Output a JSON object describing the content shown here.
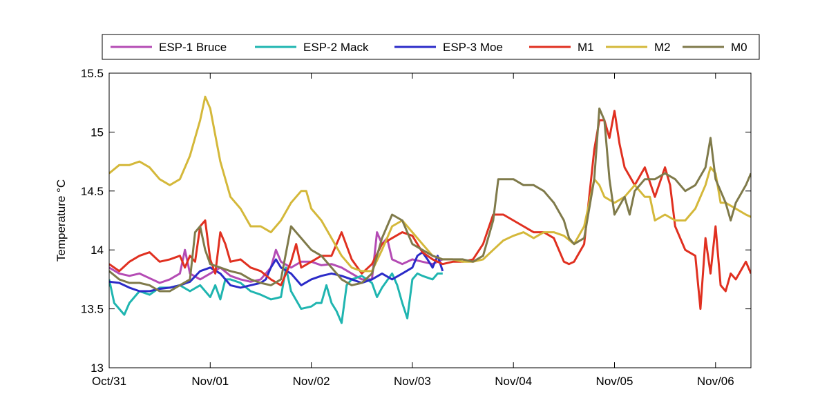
{
  "chart_data": {
    "type": "line",
    "title": "",
    "xlabel": "",
    "ylabel": "Temperature °C",
    "xlim": [
      0,
      6.35
    ],
    "ylim": [
      13,
      15.5
    ],
    "x_ticks": [
      {
        "value": 0,
        "label": "Oct/31"
      },
      {
        "value": 1,
        "label": "Nov/01"
      },
      {
        "value": 2,
        "label": "Nov/02"
      },
      {
        "value": 3,
        "label": "Nov/03"
      },
      {
        "value": 4,
        "label": "Nov/04"
      },
      {
        "value": 5,
        "label": "Nov/05"
      },
      {
        "value": 6,
        "label": "Nov/06"
      }
    ],
    "y_ticks": [
      {
        "value": 13,
        "label": "13"
      },
      {
        "value": 13.5,
        "label": "13.5"
      },
      {
        "value": 14,
        "label": "14"
      },
      {
        "value": 14.5,
        "label": "14.5"
      },
      {
        "value": 15,
        "label": "15"
      },
      {
        "value": 15.5,
        "label": "15.5"
      }
    ],
    "grid": false,
    "legend_position": "top",
    "x_unit_note": "days",
    "series": [
      {
        "name": "ESP-1 Bruce",
        "color": "#b44bb4",
        "x": [
          0,
          0.1,
          0.2,
          0.3,
          0.4,
          0.5,
          0.6,
          0.7,
          0.75,
          0.8,
          0.9,
          1.0,
          1.1,
          1.2,
          1.3,
          1.4,
          1.5,
          1.6,
          1.65,
          1.7,
          1.8,
          1.9,
          2.0,
          2.1,
          2.2,
          2.3,
          2.4,
          2.5,
          2.6,
          2.65,
          2.7,
          2.75,
          2.8,
          2.9,
          3.0,
          3.1,
          3.2,
          3.25,
          3.3
        ],
        "y": [
          13.85,
          13.8,
          13.78,
          13.8,
          13.76,
          13.72,
          13.75,
          13.8,
          14.0,
          13.8,
          13.75,
          13.8,
          13.85,
          13.78,
          13.75,
          13.73,
          13.75,
          13.85,
          14.0,
          13.9,
          13.85,
          13.9,
          13.9,
          13.87,
          13.88,
          13.85,
          13.8,
          13.75,
          13.75,
          14.15,
          14.05,
          14.1,
          13.92,
          13.88,
          13.92,
          13.9,
          13.88,
          13.9,
          13.92
        ]
      },
      {
        "name": "ESP-2 Mack",
        "color": "#1fb5b0",
        "x": [
          0,
          0.05,
          0.1,
          0.15,
          0.2,
          0.3,
          0.4,
          0.5,
          0.6,
          0.7,
          0.8,
          0.9,
          1.0,
          1.05,
          1.1,
          1.15,
          1.2,
          1.3,
          1.4,
          1.5,
          1.6,
          1.7,
          1.75,
          1.8,
          1.9,
          2.0,
          2.05,
          2.1,
          2.15,
          2.2,
          2.25,
          2.3,
          2.35,
          2.4,
          2.5,
          2.6,
          2.65,
          2.7,
          2.8,
          2.85,
          2.9,
          2.95,
          3.0,
          3.05,
          3.1,
          3.2,
          3.25,
          3.3
        ],
        "y": [
          13.75,
          13.55,
          13.5,
          13.45,
          13.55,
          13.65,
          13.62,
          13.68,
          13.68,
          13.7,
          13.65,
          13.7,
          13.6,
          13.7,
          13.58,
          13.75,
          13.75,
          13.72,
          13.65,
          13.62,
          13.58,
          13.6,
          13.85,
          13.65,
          13.5,
          13.52,
          13.55,
          13.55,
          13.7,
          13.55,
          13.48,
          13.38,
          13.7,
          13.75,
          13.78,
          13.72,
          13.6,
          13.68,
          13.8,
          13.7,
          13.55,
          13.42,
          13.75,
          13.8,
          13.78,
          13.75,
          13.8,
          13.8
        ]
      },
      {
        "name": "ESP-3 Moe",
        "color": "#2b2bc8",
        "x": [
          0,
          0.1,
          0.2,
          0.3,
          0.4,
          0.5,
          0.6,
          0.7,
          0.8,
          0.9,
          1.0,
          1.1,
          1.2,
          1.3,
          1.4,
          1.5,
          1.55,
          1.6,
          1.65,
          1.7,
          1.8,
          1.9,
          2.0,
          2.1,
          2.2,
          2.3,
          2.4,
          2.5,
          2.6,
          2.7,
          2.8,
          2.9,
          3.0,
          3.05,
          3.1,
          3.15,
          3.2,
          3.25,
          3.3
        ],
        "y": [
          13.73,
          13.72,
          13.68,
          13.65,
          13.65,
          13.67,
          13.68,
          13.7,
          13.73,
          13.82,
          13.85,
          13.8,
          13.7,
          13.68,
          13.7,
          13.72,
          13.75,
          13.85,
          13.92,
          13.85,
          13.8,
          13.7,
          13.75,
          13.78,
          13.8,
          13.78,
          13.75,
          13.72,
          13.75,
          13.8,
          13.75,
          13.8,
          13.85,
          13.95,
          13.98,
          13.92,
          13.85,
          13.95,
          13.82
        ]
      },
      {
        "name": "M1",
        "color": "#e03020",
        "x": [
          0,
          0.1,
          0.2,
          0.3,
          0.4,
          0.5,
          0.6,
          0.7,
          0.75,
          0.8,
          0.85,
          0.9,
          0.95,
          1.0,
          1.05,
          1.1,
          1.15,
          1.2,
          1.3,
          1.4,
          1.5,
          1.6,
          1.7,
          1.8,
          1.85,
          1.9,
          2.0,
          2.1,
          2.2,
          2.3,
          2.4,
          2.5,
          2.6,
          2.7,
          2.8,
          2.9,
          3.0,
          3.1,
          3.2,
          3.3,
          3.4,
          3.5,
          3.6,
          3.7,
          3.8,
          3.9,
          4.0,
          4.1,
          4.2,
          4.3,
          4.4,
          4.5,
          4.55,
          4.6,
          4.7,
          4.8,
          4.85,
          4.9,
          4.95,
          5.0,
          5.05,
          5.1,
          5.2,
          5.3,
          5.4,
          5.5,
          5.55,
          5.6,
          5.7,
          5.8,
          5.85,
          5.9,
          5.95,
          6.0,
          6.05,
          6.1,
          6.15,
          6.2,
          6.3,
          6.35
        ],
        "y": [
          13.88,
          13.82,
          13.9,
          13.95,
          13.98,
          13.9,
          13.92,
          13.95,
          13.85,
          13.95,
          13.9,
          14.2,
          14.25,
          13.92,
          13.8,
          14.15,
          14.05,
          13.9,
          13.92,
          13.85,
          13.82,
          13.75,
          13.7,
          13.9,
          14.05,
          13.85,
          13.9,
          13.95,
          13.95,
          14.15,
          13.92,
          13.8,
          13.88,
          14.05,
          14.1,
          14.15,
          14.12,
          13.98,
          13.92,
          13.88,
          13.9,
          13.9,
          13.92,
          14.05,
          14.3,
          14.3,
          14.25,
          14.2,
          14.15,
          14.15,
          14.1,
          13.9,
          13.88,
          13.9,
          14.05,
          14.85,
          15.1,
          15.1,
          14.95,
          15.18,
          14.9,
          14.7,
          14.55,
          14.7,
          14.45,
          14.7,
          14.55,
          14.2,
          14.0,
          13.95,
          13.5,
          14.1,
          13.8,
          14.2,
          13.7,
          13.65,
          13.8,
          13.75,
          13.9,
          13.8
        ]
      },
      {
        "name": "M2",
        "color": "#d4b83a",
        "x": [
          0,
          0.1,
          0.2,
          0.3,
          0.4,
          0.5,
          0.6,
          0.7,
          0.8,
          0.9,
          0.95,
          1.0,
          1.1,
          1.2,
          1.3,
          1.4,
          1.5,
          1.6,
          1.7,
          1.8,
          1.9,
          1.95,
          2.0,
          2.1,
          2.2,
          2.3,
          2.4,
          2.5,
          2.6,
          2.7,
          2.8,
          2.9,
          3.0,
          3.1,
          3.2,
          3.3,
          3.4,
          3.5,
          3.6,
          3.7,
          3.8,
          3.9,
          4.0,
          4.1,
          4.2,
          4.3,
          4.4,
          4.5,
          4.6,
          4.7,
          4.8,
          4.85,
          4.9,
          5.0,
          5.1,
          5.2,
          5.3,
          5.35,
          5.4,
          5.5,
          5.6,
          5.7,
          5.8,
          5.9,
          5.95,
          6.0,
          6.05,
          6.1,
          6.2,
          6.3,
          6.35
        ],
        "y": [
          14.65,
          14.72,
          14.72,
          14.75,
          14.7,
          14.6,
          14.55,
          14.6,
          14.8,
          15.1,
          15.3,
          15.2,
          14.75,
          14.45,
          14.35,
          14.2,
          14.2,
          14.15,
          14.25,
          14.4,
          14.5,
          14.5,
          14.35,
          14.25,
          14.1,
          13.95,
          13.85,
          13.82,
          13.82,
          14.0,
          14.2,
          14.25,
          14.15,
          14.05,
          13.95,
          13.92,
          13.92,
          13.9,
          13.9,
          13.92,
          14.0,
          14.08,
          14.12,
          14.15,
          14.1,
          14.15,
          14.15,
          14.12,
          14.05,
          14.2,
          14.6,
          14.55,
          14.45,
          14.4,
          14.45,
          14.55,
          14.45,
          14.45,
          14.25,
          14.3,
          14.25,
          14.25,
          14.35,
          14.55,
          14.7,
          14.65,
          14.4,
          14.4,
          14.35,
          14.3,
          14.28
        ]
      },
      {
        "name": "M0",
        "color": "#7f7a4a",
        "x": [
          0,
          0.1,
          0.2,
          0.3,
          0.4,
          0.5,
          0.6,
          0.7,
          0.8,
          0.85,
          0.9,
          0.95,
          1.0,
          1.1,
          1.2,
          1.3,
          1.4,
          1.5,
          1.6,
          1.7,
          1.8,
          1.85,
          1.9,
          2.0,
          2.1,
          2.2,
          2.3,
          2.4,
          2.5,
          2.6,
          2.7,
          2.8,
          2.9,
          3.0,
          3.1,
          3.2,
          3.3,
          3.4,
          3.5,
          3.6,
          3.7,
          3.8,
          3.85,
          3.9,
          4.0,
          4.1,
          4.2,
          4.3,
          4.4,
          4.5,
          4.55,
          4.6,
          4.7,
          4.8,
          4.85,
          4.9,
          4.95,
          5.0,
          5.1,
          5.15,
          5.2,
          5.3,
          5.4,
          5.5,
          5.6,
          5.7,
          5.8,
          5.9,
          5.95,
          6.0,
          6.1,
          6.15,
          6.2,
          6.3,
          6.35
        ],
        "y": [
          13.82,
          13.75,
          13.72,
          13.72,
          13.7,
          13.65,
          13.65,
          13.7,
          13.75,
          14.15,
          14.2,
          14.0,
          13.88,
          13.85,
          13.82,
          13.8,
          13.75,
          13.72,
          13.7,
          13.75,
          14.2,
          14.15,
          14.1,
          14.0,
          13.95,
          13.85,
          13.75,
          13.7,
          13.72,
          13.8,
          14.1,
          14.3,
          14.25,
          14.05,
          14.0,
          13.95,
          13.92,
          13.92,
          13.92,
          13.9,
          13.95,
          14.25,
          14.6,
          14.6,
          14.6,
          14.55,
          14.55,
          14.5,
          14.4,
          14.25,
          14.1,
          14.05,
          14.1,
          14.6,
          15.2,
          15.1,
          14.6,
          14.3,
          14.45,
          14.3,
          14.5,
          14.6,
          14.6,
          14.65,
          14.6,
          14.5,
          14.55,
          14.7,
          14.95,
          14.6,
          14.4,
          14.25,
          14.4,
          14.55,
          14.65
        ]
      }
    ]
  }
}
